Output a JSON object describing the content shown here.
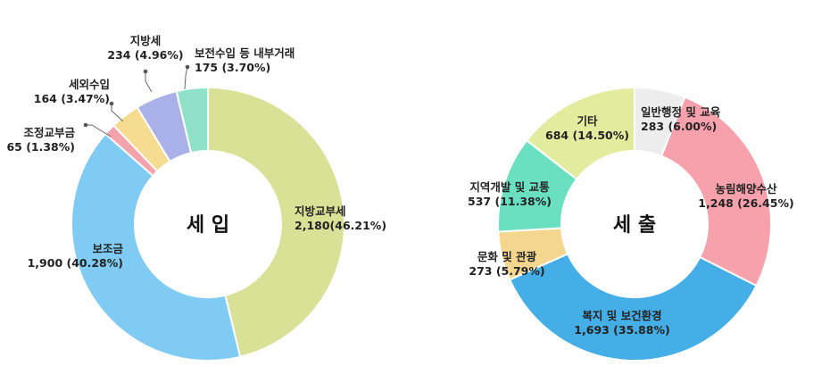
{
  "chart_data": [
    {
      "type": "pie",
      "title": "세 입",
      "colors": {
        "지방교부세": "#d9e197",
        "보조금": "#7fcbf3",
        "조정교부금": "#f4a3ad",
        "세외수입": "#f5dc90",
        "지방세": "#aab0e8",
        "보전수입 등 내부거래": "#8fe2c8"
      },
      "slices": [
        {
          "name": "지방교부세",
          "value": 2180,
          "value_text": "2,180(46.21%)"
        },
        {
          "name": "보조금",
          "value": 1900,
          "value_text": "1,900 (40.28%)"
        },
        {
          "name": "조정교부금",
          "value": 65,
          "value_text": "65 (1.38%)"
        },
        {
          "name": "세외수입",
          "value": 164,
          "value_text": "164 (3.47%)"
        },
        {
          "name": "지방세",
          "value": 234,
          "value_text": "234 (4.96%)"
        },
        {
          "name": "보전수입 등 내부거래",
          "value": 175,
          "value_text": "175 (3.70%)"
        }
      ]
    },
    {
      "type": "pie",
      "title": "세 출",
      "colors": {
        "일반행정 및 교육": "#ededed",
        "농림해양수산": "#f7a1ac",
        "복지 및 보건환경": "#45aee6",
        "문화 및 관광": "#f5d68f",
        "지역개발 및 교통": "#6be0c0",
        "기타": "#e2ec9f"
      },
      "slices": [
        {
          "name": "일반행정 및 교육",
          "value": 283,
          "value_text": "283 (6.00%)"
        },
        {
          "name": "농림해양수산",
          "value": 1248,
          "value_text": "1,248 (26.45%)"
        },
        {
          "name": "복지 및 보건환경",
          "value": 1693,
          "value_text": "1,693 (35.88%)"
        },
        {
          "name": "문화 및 관광",
          "value": 273,
          "value_text": "273 (5.79%)"
        },
        {
          "name": "지역개발 및 교통",
          "value": 537,
          "value_text": "537 (11.38%)"
        },
        {
          "name": "기타",
          "value": 684,
          "value_text": "684 (14.50%)"
        }
      ]
    }
  ]
}
